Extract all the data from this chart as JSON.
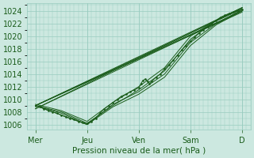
{
  "title": "Pression niveau de la mer( hPa )",
  "ylabel_ticks": [
    1006,
    1008,
    1010,
    1012,
    1014,
    1016,
    1018,
    1020,
    1022,
    1024
  ],
  "ylim": [
    1005.2,
    1025.2
  ],
  "xlim": [
    0,
    104
  ],
  "xtick_positions": [
    4,
    28,
    52,
    76,
    100
  ],
  "xtick_labels": [
    "Mer",
    "Jeu",
    "Ven",
    "Sam",
    "D"
  ],
  "background_color": "#cce8e0",
  "grid_color": "#99ccbf",
  "line_color": "#1a5c1a",
  "label_color": "#1a5c1a",
  "figsize": [
    3.2,
    2.0
  ],
  "dpi": 100,
  "straight_lines": [
    [
      [
        4,
        1009.0
      ],
      [
        100,
        1024.5
      ]
    ],
    [
      [
        4,
        1009.0
      ],
      [
        100,
        1024.3
      ]
    ],
    [
      [
        4,
        1009.0
      ],
      [
        100,
        1024.0
      ]
    ],
    [
      [
        4,
        1009.0
      ],
      [
        100,
        1023.8
      ]
    ],
    [
      [
        4,
        1008.5
      ],
      [
        100,
        1024.5
      ]
    ],
    [
      [
        4,
        1008.5
      ],
      [
        100,
        1024.0
      ]
    ]
  ],
  "dip_lines": [
    [
      [
        4,
        1009.0
      ],
      [
        16,
        1008.0
      ],
      [
        28,
        1006.2
      ],
      [
        40,
        1009.0
      ],
      [
        52,
        1011.5
      ],
      [
        64,
        1014.5
      ],
      [
        76,
        1019.5
      ],
      [
        88,
        1022.5
      ],
      [
        100,
        1024.5
      ]
    ],
    [
      [
        4,
        1009.0
      ],
      [
        16,
        1007.8
      ],
      [
        28,
        1006.0
      ],
      [
        40,
        1009.2
      ],
      [
        52,
        1011.2
      ],
      [
        64,
        1014.0
      ],
      [
        76,
        1019.0
      ],
      [
        88,
        1022.0
      ],
      [
        100,
        1024.2
      ]
    ],
    [
      [
        4,
        1009.0
      ],
      [
        16,
        1007.5
      ],
      [
        28,
        1006.0
      ],
      [
        40,
        1008.8
      ],
      [
        52,
        1010.8
      ],
      [
        64,
        1013.5
      ],
      [
        76,
        1018.5
      ],
      [
        88,
        1021.8
      ],
      [
        100,
        1024.0
      ]
    ],
    [
      [
        4,
        1009.2
      ],
      [
        16,
        1008.2
      ],
      [
        28,
        1006.5
      ],
      [
        40,
        1009.5
      ],
      [
        52,
        1012.0
      ],
      [
        64,
        1015.0
      ],
      [
        76,
        1020.0
      ],
      [
        88,
        1022.5
      ],
      [
        100,
        1024.5
      ]
    ]
  ],
  "detail_line": [
    [
      4,
      1009.0
    ],
    [
      6,
      1008.8
    ],
    [
      8,
      1008.5
    ],
    [
      10,
      1008.2
    ],
    [
      12,
      1008.0
    ],
    [
      14,
      1007.8
    ],
    [
      16,
      1007.5
    ],
    [
      18,
      1007.2
    ],
    [
      20,
      1007.0
    ],
    [
      22,
      1006.8
    ],
    [
      24,
      1006.5
    ],
    [
      26,
      1006.3
    ],
    [
      28,
      1006.2
    ],
    [
      30,
      1006.5
    ],
    [
      32,
      1007.0
    ],
    [
      34,
      1007.8
    ],
    [
      36,
      1008.5
    ],
    [
      38,
      1009.0
    ],
    [
      40,
      1009.5
    ],
    [
      42,
      1010.0
    ],
    [
      44,
      1010.5
    ],
    [
      46,
      1010.8
    ],
    [
      48,
      1011.2
    ],
    [
      50,
      1011.5
    ],
    [
      52,
      1011.8
    ],
    [
      53,
      1012.5
    ],
    [
      54,
      1013.0
    ],
    [
      55,
      1013.2
    ],
    [
      56,
      1012.8
    ],
    [
      57,
      1012.5
    ],
    [
      58,
      1012.8
    ],
    [
      60,
      1013.5
    ],
    [
      62,
      1014.0
    ],
    [
      64,
      1014.8
    ],
    [
      66,
      1015.5
    ],
    [
      68,
      1016.2
    ],
    [
      70,
      1017.0
    ],
    [
      72,
      1017.8
    ],
    [
      74,
      1018.5
    ],
    [
      76,
      1019.2
    ],
    [
      78,
      1019.8
    ],
    [
      80,
      1020.5
    ],
    [
      82,
      1021.0
    ],
    [
      84,
      1021.5
    ],
    [
      86,
      1022.0
    ],
    [
      88,
      1022.5
    ],
    [
      90,
      1023.0
    ],
    [
      92,
      1023.3
    ],
    [
      94,
      1023.6
    ],
    [
      96,
      1023.8
    ],
    [
      98,
      1024.0
    ],
    [
      100,
      1024.2
    ]
  ]
}
